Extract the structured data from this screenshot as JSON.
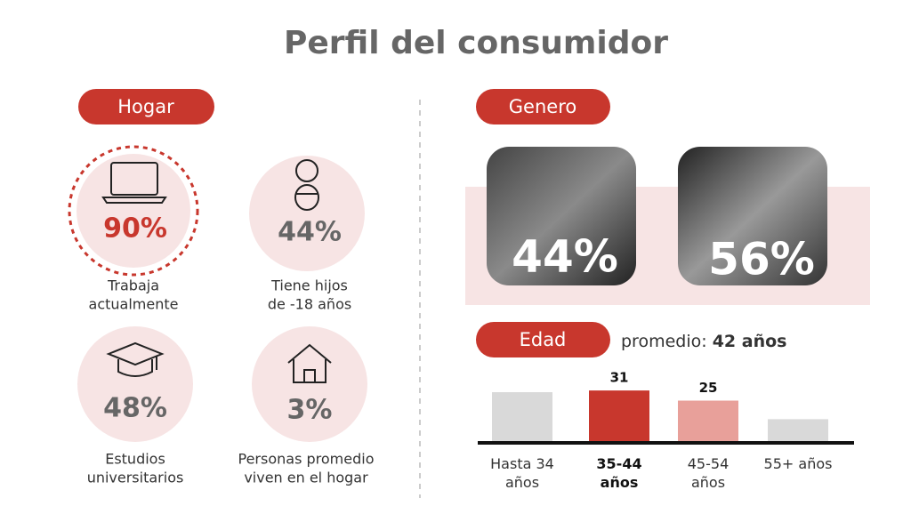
{
  "title": "Perfil del consumidor",
  "hogar": {
    "label": "Hogar",
    "items": [
      {
        "value": "90%",
        "lines": [
          "Trabaja",
          "actualmente"
        ]
      },
      {
        "value": "44%",
        "lines": [
          "Tiene hijos",
          "de -18 años"
        ]
      },
      {
        "value": "48%",
        "lines": [
          "Estudios",
          "universitarios"
        ]
      },
      {
        "value": "3%",
        "lines": [
          "Personas promedio",
          "viven en el hogar"
        ]
      }
    ]
  },
  "genero": {
    "label": "Genero",
    "hombres": "44%",
    "mujeres": "56%"
  },
  "edad": {
    "label": "Edad",
    "promedio_label": "promedio:",
    "promedio": "42 años"
  },
  "chart_data": {
    "type": "bar",
    "categories": [
      "Hasta 34 años",
      "35-44 años",
      "45-54 años",
      "55+ años"
    ],
    "values": [
      30,
      31,
      25,
      14
    ],
    "colors": [
      "#d9d9d9",
      "#c8372d",
      "#e8a09a",
      "#d9d9d9"
    ],
    "labeled": [
      false,
      true,
      true,
      false
    ],
    "highlight": 1,
    "ylim": [
      0,
      40
    ]
  }
}
